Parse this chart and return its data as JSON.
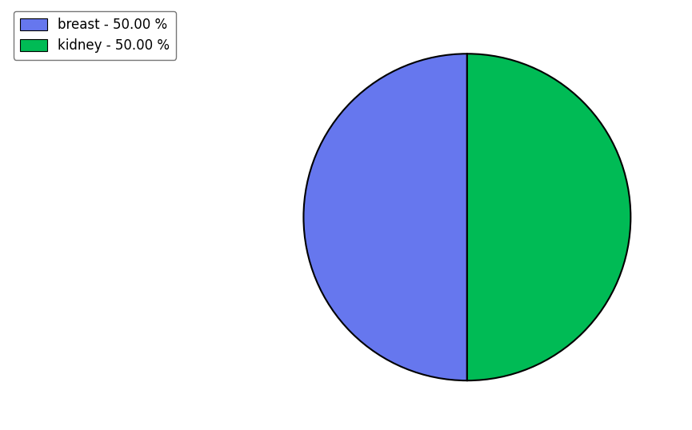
{
  "labels": [
    "breast",
    "kidney"
  ],
  "values": [
    50.0,
    50.0
  ],
  "colors": [
    "#6677ee",
    "#00bb55"
  ],
  "legend_labels": [
    "breast - 50.00 %",
    "kidney - 50.00 %"
  ],
  "background_color": "#ffffff",
  "edge_color": "#000000",
  "edge_linewidth": 1.5,
  "startangle": 90,
  "counterclock": true,
  "figsize": [
    8.65,
    5.38
  ],
  "dpi": 100
}
